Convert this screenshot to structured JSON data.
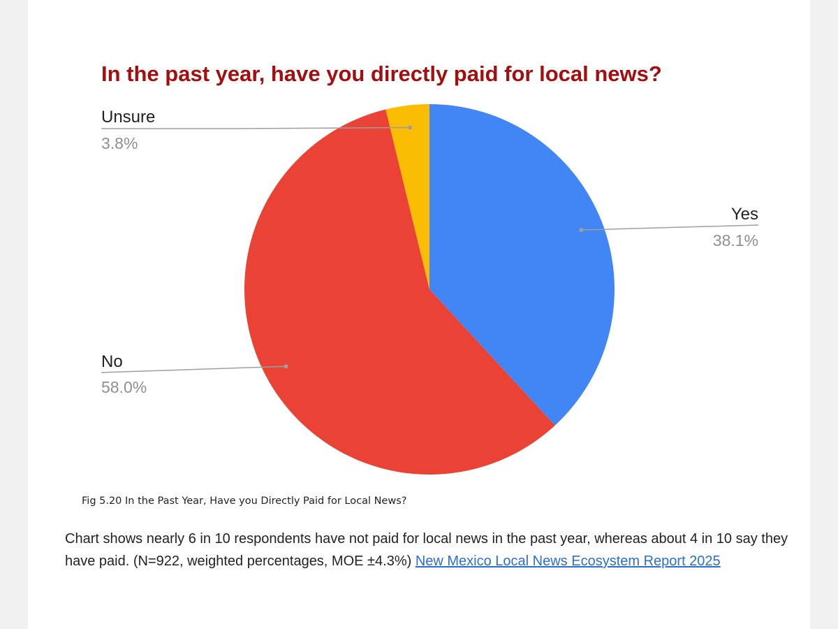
{
  "chart_data": {
    "type": "pie",
    "title": "In the past year, have you directly paid for local news?",
    "slices": [
      {
        "label": "Yes",
        "value": 38.1,
        "value_label": "38.1%",
        "color": "#4285f4"
      },
      {
        "label": "No",
        "value": 58.0,
        "value_label": "58.0%",
        "color": "#ea4335"
      },
      {
        "label": "Unsure",
        "value": 3.8,
        "value_label": "3.8%",
        "color": "#fbbc04"
      }
    ],
    "legend": "none"
  },
  "caption": {
    "figure": "Fig 5.20 In the Past Year, Have you Directly Paid for Local News?",
    "description": "Chart shows nearly 6 in 10 respondents have not paid for local news in the past year, whereas about 4 in 10 say they have paid. (N=922, weighted percentages, MOE ±4.3%)",
    "link_text": "New Mexico Local News Ecosystem Report 2025"
  },
  "colors": {
    "title": "#a50e0e",
    "leader_line": "#9e9e9e",
    "value_text": "#8f8f8f",
    "link": "#2a6fcf"
  }
}
